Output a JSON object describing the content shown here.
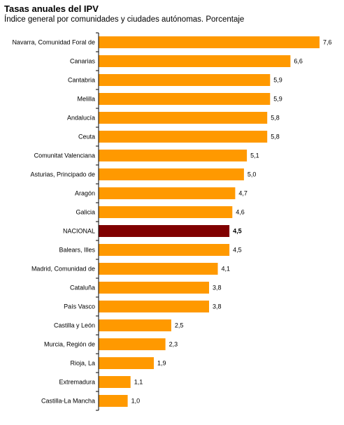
{
  "chart_data": {
    "type": "bar",
    "orientation": "horizontal",
    "title": "Tasas anuales del IPV",
    "subtitle": "Índice general por comunidades y ciudades autónomas. Porcentaje",
    "categories": [
      "Navarra, Comunidad Foral de",
      "Canarias",
      "Cantabria",
      "Melilla",
      "Andalucía",
      "Ceuta",
      "Comunitat Valenciana",
      "Asturias, Principado de",
      "Aragón",
      "Galicia",
      "NACIONAL",
      "Balears, Illes",
      "Madrid, Comunidad de",
      "Cataluña",
      "País Vasco",
      "Castilla y León",
      "Murcia, Región de",
      "Rioja, La",
      "Extremadura",
      "Castilla-La Mancha"
    ],
    "values": [
      7.6,
      6.6,
      5.9,
      5.9,
      5.8,
      5.8,
      5.1,
      5.0,
      4.7,
      4.6,
      4.5,
      4.5,
      4.1,
      3.8,
      3.8,
      2.5,
      2.3,
      1.9,
      1.1,
      1.0
    ],
    "value_labels": [
      "7,6",
      "6,6",
      "5,9",
      "5,9",
      "5,8",
      "5,8",
      "5,1",
      "5,0",
      "4,7",
      "4,6",
      "4,5",
      "4,5",
      "4,1",
      "3,8",
      "3,8",
      "2,5",
      "2,3",
      "1,9",
      "1,1",
      "1,0"
    ],
    "highlight_category": "NACIONAL",
    "colors": {
      "bar": "#FF9900",
      "highlight": "#800000",
      "axis": "#000000"
    },
    "xlim": [
      0,
      7.6
    ],
    "grid": false,
    "legend": "none"
  }
}
